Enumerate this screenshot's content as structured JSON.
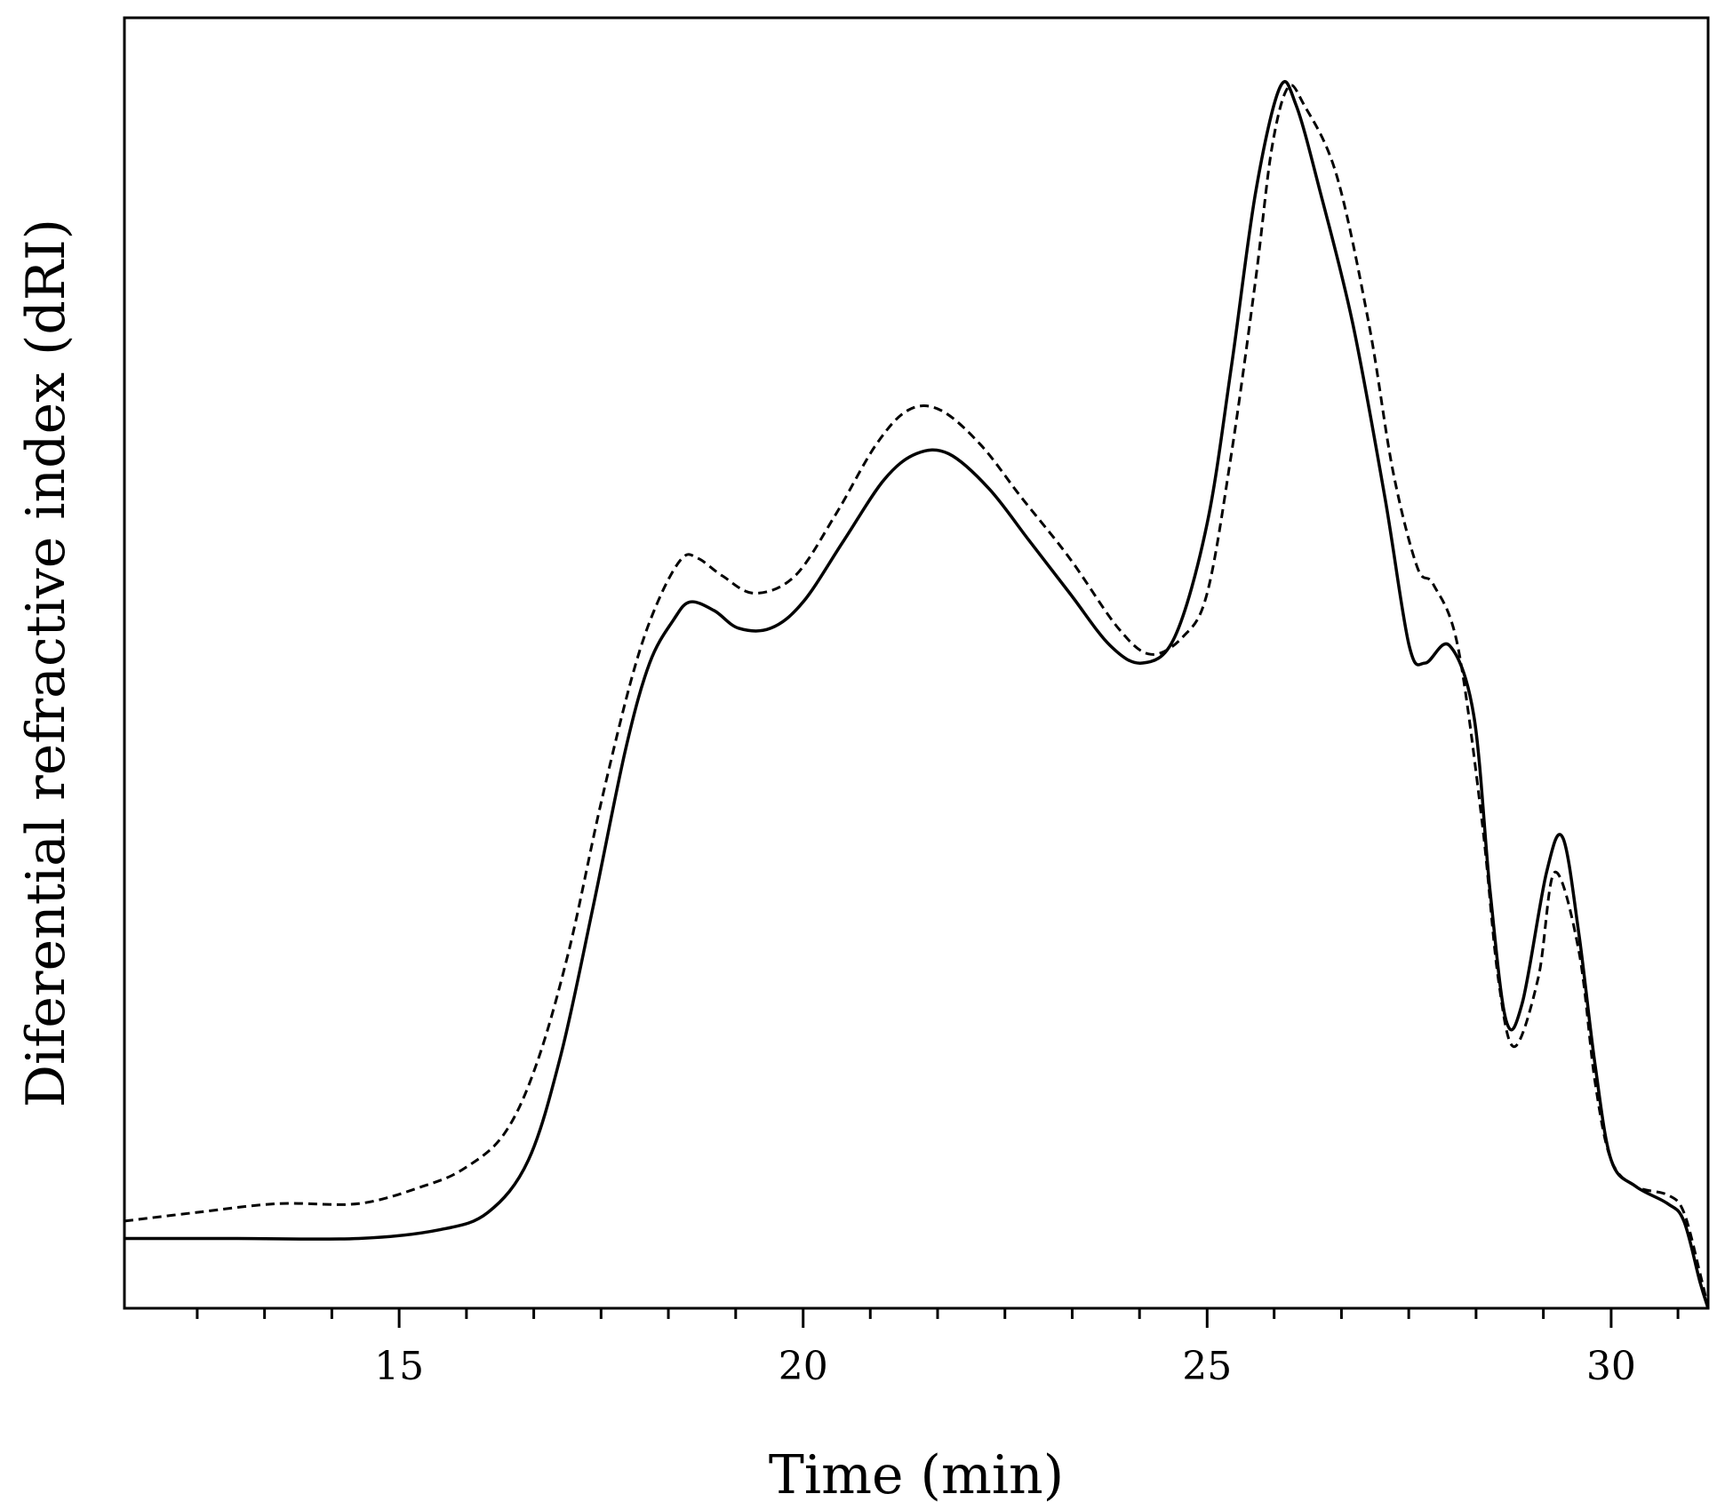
{
  "chart_data": {
    "type": "line",
    "xlabel": "Time (min)",
    "ylabel": "Diferential refractive index (dRI)",
    "xlim": [
      11.6,
      31.2
    ],
    "ylim": [
      -0.08,
      1.4
    ],
    "xticks": [
      15,
      20,
      25,
      30
    ],
    "xtick_labels": [
      "15",
      "20",
      "25",
      "30"
    ],
    "minor_xtick_step": 0.833,
    "yticks": [],
    "grid": false,
    "legend": "none",
    "colors": {
      "line": "#000000",
      "frame": "#000000",
      "background": "#ffffff"
    },
    "series": [
      {
        "style": "solid",
        "points": [
          [
            11.6,
            0.0
          ],
          [
            13.0,
            0.0
          ],
          [
            14.5,
            0.0
          ],
          [
            15.5,
            0.01
          ],
          [
            16.1,
            0.03
          ],
          [
            16.6,
            0.09
          ],
          [
            17.0,
            0.21
          ],
          [
            17.4,
            0.38
          ],
          [
            17.8,
            0.56
          ],
          [
            18.1,
            0.66
          ],
          [
            18.4,
            0.71
          ],
          [
            18.6,
            0.73
          ],
          [
            18.9,
            0.72
          ],
          [
            19.2,
            0.7
          ],
          [
            19.6,
            0.7
          ],
          [
            20.0,
            0.73
          ],
          [
            20.5,
            0.8
          ],
          [
            21.0,
            0.87
          ],
          [
            21.4,
            0.9
          ],
          [
            21.8,
            0.9
          ],
          [
            22.3,
            0.86
          ],
          [
            22.8,
            0.8
          ],
          [
            23.3,
            0.74
          ],
          [
            23.8,
            0.68
          ],
          [
            24.2,
            0.66
          ],
          [
            24.6,
            0.69
          ],
          [
            25.0,
            0.82
          ],
          [
            25.3,
            1.0
          ],
          [
            25.6,
            1.2
          ],
          [
            25.9,
            1.32
          ],
          [
            26.1,
            1.3
          ],
          [
            26.4,
            1.2
          ],
          [
            26.8,
            1.05
          ],
          [
            27.2,
            0.85
          ],
          [
            27.5,
            0.68
          ],
          [
            27.7,
            0.66
          ],
          [
            28.0,
            0.68
          ],
          [
            28.3,
            0.6
          ],
          [
            28.5,
            0.4
          ],
          [
            28.7,
            0.25
          ],
          [
            28.9,
            0.27
          ],
          [
            29.2,
            0.42
          ],
          [
            29.4,
            0.46
          ],
          [
            29.6,
            0.35
          ],
          [
            29.8,
            0.2
          ],
          [
            30.0,
            0.09
          ],
          [
            30.3,
            0.06
          ],
          [
            30.7,
            0.04
          ],
          [
            30.9,
            0.02
          ],
          [
            31.1,
            -0.05
          ],
          [
            31.2,
            -0.08
          ]
        ]
      },
      {
        "style": "dashed",
        "points": [
          [
            11.6,
            0.02
          ],
          [
            12.5,
            0.03
          ],
          [
            13.5,
            0.04
          ],
          [
            14.5,
            0.04
          ],
          [
            15.3,
            0.06
          ],
          [
            15.8,
            0.08
          ],
          [
            16.3,
            0.12
          ],
          [
            16.7,
            0.2
          ],
          [
            17.1,
            0.33
          ],
          [
            17.5,
            0.5
          ],
          [
            17.9,
            0.65
          ],
          [
            18.2,
            0.73
          ],
          [
            18.5,
            0.78
          ],
          [
            18.7,
            0.78
          ],
          [
            19.0,
            0.76
          ],
          [
            19.4,
            0.74
          ],
          [
            19.9,
            0.76
          ],
          [
            20.4,
            0.83
          ],
          [
            20.9,
            0.91
          ],
          [
            21.3,
            0.95
          ],
          [
            21.7,
            0.95
          ],
          [
            22.2,
            0.91
          ],
          [
            22.7,
            0.85
          ],
          [
            23.3,
            0.78
          ],
          [
            23.9,
            0.7
          ],
          [
            24.3,
            0.67
          ],
          [
            24.7,
            0.69
          ],
          [
            25.0,
            0.74
          ],
          [
            25.3,
            0.9
          ],
          [
            25.6,
            1.1
          ],
          [
            25.8,
            1.25
          ],
          [
            26.0,
            1.32
          ],
          [
            26.2,
            1.3
          ],
          [
            26.6,
            1.22
          ],
          [
            27.0,
            1.05
          ],
          [
            27.3,
            0.88
          ],
          [
            27.6,
            0.77
          ],
          [
            27.8,
            0.75
          ],
          [
            28.1,
            0.68
          ],
          [
            28.4,
            0.48
          ],
          [
            28.6,
            0.3
          ],
          [
            28.8,
            0.22
          ],
          [
            29.1,
            0.3
          ],
          [
            29.3,
            0.42
          ],
          [
            29.6,
            0.33
          ],
          [
            29.8,
            0.18
          ],
          [
            30.0,
            0.09
          ],
          [
            30.3,
            0.06
          ],
          [
            30.7,
            0.05
          ],
          [
            30.9,
            0.03
          ],
          [
            31.1,
            -0.04
          ],
          [
            31.2,
            -0.08
          ]
        ]
      }
    ]
  }
}
